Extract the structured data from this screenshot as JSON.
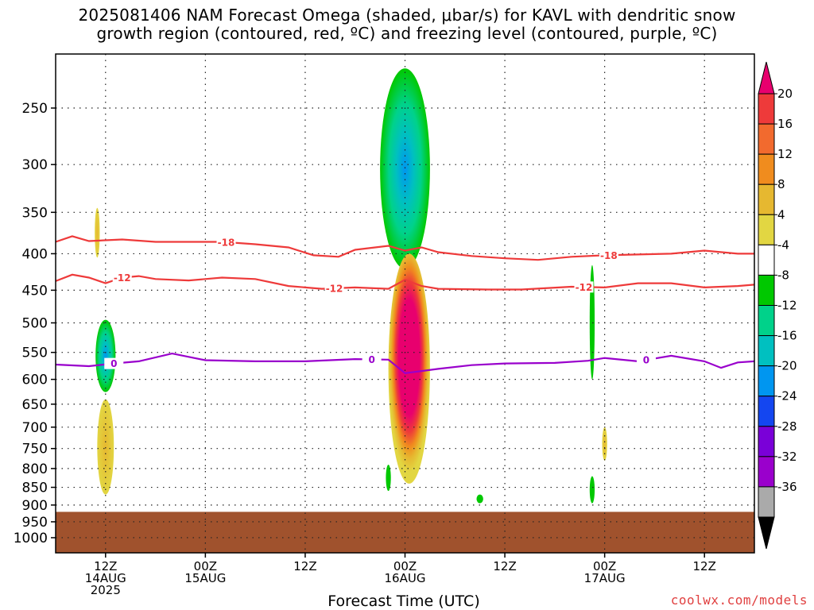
{
  "title_line1": "2025081406 NAM Forecast Omega (shaded, μbar/s) for KAVL with dendritic snow",
  "title_line2": "growth region (contoured, red, ºC) and freezing level (contoured, purple, ºC)",
  "xlabel": "Forecast Time (UTC)",
  "credit": "coolwx.com/models",
  "chart_data": {
    "type": "heatmap",
    "y_axis": {
      "label": "",
      "unit": "hPa",
      "scale": "log-pressure",
      "range": [
        210,
        1050
      ],
      "ticks": [
        250,
        300,
        350,
        400,
        450,
        500,
        550,
        600,
        650,
        700,
        750,
        800,
        850,
        900,
        950,
        1000
      ]
    },
    "x_axis": {
      "start": "2025-08-14T06Z",
      "end": "2025-08-17T18Z",
      "ticks": [
        {
          "t": 6,
          "line1": "12Z",
          "line2": "14AUG",
          "line3": "2025"
        },
        {
          "t": 18,
          "line1": "00Z",
          "line2": "15AUG",
          "line3": ""
        },
        {
          "t": 30,
          "line1": "12Z",
          "line2": "",
          "line3": ""
        },
        {
          "t": 42,
          "line1": "00Z",
          "line2": "16AUG",
          "line3": ""
        },
        {
          "t": 54,
          "line1": "12Z",
          "line2": "",
          "line3": ""
        },
        {
          "t": 66,
          "line1": "00Z",
          "line2": "17AUG",
          "line3": ""
        },
        {
          "t": 78,
          "line1": "12Z",
          "line2": "",
          "line3": ""
        }
      ],
      "grid": true
    },
    "colorbar": {
      "labels": [
        "20",
        "16",
        "12",
        "8",
        "4",
        "-4",
        "-8",
        "-12",
        "-16",
        "-20",
        "-24",
        "-28",
        "-32",
        "-36"
      ],
      "colors_top_to_bottom": [
        "#e8006e",
        "#ee3a3a",
        "#f26a2e",
        "#f08c1e",
        "#e6b830",
        "#e2d642",
        "#ffffff",
        "#00c800",
        "#00d28a",
        "#00c0c0",
        "#0096f0",
        "#1446f0",
        "#7a00d8",
        "#9a00cc",
        "#aaaaaa",
        "#000000"
      ]
    },
    "terrain": {
      "surface_pressure": 920,
      "color": "#a0522d"
    },
    "contours": [
      {
        "label": "-18",
        "color": "#ee3a3a",
        "label_t": [
          20.5,
          66.5
        ],
        "points": [
          [
            0,
            385
          ],
          [
            2,
            378
          ],
          [
            4,
            384
          ],
          [
            8,
            382
          ],
          [
            12,
            385
          ],
          [
            16,
            385
          ],
          [
            20,
            385
          ],
          [
            24,
            388
          ],
          [
            28,
            392
          ],
          [
            31,
            402
          ],
          [
            34,
            404
          ],
          [
            36,
            395
          ],
          [
            40,
            390
          ],
          [
            42,
            396
          ],
          [
            44,
            392
          ],
          [
            46,
            398
          ],
          [
            50,
            403
          ],
          [
            54,
            406
          ],
          [
            58,
            408
          ],
          [
            62,
            404
          ],
          [
            66,
            402
          ],
          [
            70,
            401
          ],
          [
            74,
            400
          ],
          [
            78,
            396
          ],
          [
            82,
            400
          ],
          [
            84,
            400
          ]
        ]
      },
      {
        "label": "-12",
        "color": "#ee3a3a",
        "label_t": [
          8,
          33.5,
          63.5
        ],
        "points": [
          [
            0,
            437
          ],
          [
            2,
            428
          ],
          [
            4,
            432
          ],
          [
            6,
            440
          ],
          [
            8,
            432
          ],
          [
            10,
            430
          ],
          [
            12,
            434
          ],
          [
            16,
            436
          ],
          [
            20,
            432
          ],
          [
            24,
            434
          ],
          [
            28,
            444
          ],
          [
            32,
            448
          ],
          [
            36,
            446
          ],
          [
            40,
            448
          ],
          [
            42,
            435
          ],
          [
            44,
            444
          ],
          [
            46,
            448
          ],
          [
            52,
            449
          ],
          [
            56,
            449
          ],
          [
            62,
            445
          ],
          [
            66,
            446
          ],
          [
            70,
            440
          ],
          [
            74,
            440
          ],
          [
            78,
            446
          ],
          [
            82,
            444
          ],
          [
            84,
            442
          ]
        ]
      },
      {
        "label": "0",
        "color": "#9900cc",
        "label_t": [
          7,
          38,
          71
        ],
        "points": [
          [
            0,
            572
          ],
          [
            4,
            575
          ],
          [
            7,
            570
          ],
          [
            10,
            566
          ],
          [
            14,
            552
          ],
          [
            18,
            564
          ],
          [
            24,
            566
          ],
          [
            30,
            566
          ],
          [
            36,
            562
          ],
          [
            40,
            563
          ],
          [
            42,
            588
          ],
          [
            46,
            580
          ],
          [
            50,
            573
          ],
          [
            54,
            570
          ],
          [
            60,
            569
          ],
          [
            64,
            565
          ],
          [
            66,
            560
          ],
          [
            70,
            566
          ],
          [
            74,
            556
          ],
          [
            78,
            566
          ],
          [
            80,
            578
          ],
          [
            82,
            568
          ],
          [
            84,
            566
          ]
        ]
      }
    ],
    "omega_features": [
      {
        "name": "day1-ascent-core",
        "t": 6,
        "p_top": 495,
        "p_bot": 625,
        "half_width_h": 1.2,
        "value": -14
      },
      {
        "name": "day1-upper-weak-rise",
        "t": 5,
        "p_top": 345,
        "p_bot": 405,
        "half_width_h": 0.3,
        "value": 4
      },
      {
        "name": "day1-lower-subsidence",
        "t": 6,
        "p_top": 640,
        "p_bot": 870,
        "half_width_h": 1.0,
        "value": 5
      },
      {
        "name": "day2-upper-ascent",
        "t": 42,
        "p_top": 220,
        "p_bot": 420,
        "half_width_h": 3.0,
        "value": -18
      },
      {
        "name": "day2-lower-subsidence",
        "t": 42.5,
        "p_top": 400,
        "p_bot": 840,
        "half_width_h": 2.5,
        "value": 20
      },
      {
        "name": "day2-near-surface-ascent",
        "t": 40,
        "p_top": 790,
        "p_bot": 860,
        "half_width_h": 0.3,
        "value": -6
      },
      {
        "name": "day2-afternoon-ascent",
        "t": 51,
        "p_top": 870,
        "p_bot": 895,
        "half_width_h": 0.4,
        "value": -6
      },
      {
        "name": "day3-narrow-ascent",
        "t": 64.5,
        "p_top": 415,
        "p_bot": 600,
        "half_width_h": 0.3,
        "value": -8
      },
      {
        "name": "day3-lower-ascent",
        "t": 64.5,
        "p_top": 820,
        "p_bot": 895,
        "half_width_h": 0.3,
        "value": -8
      },
      {
        "name": "day3-lower-subsidence",
        "t": 66,
        "p_top": 700,
        "p_bot": 780,
        "half_width_h": 0.3,
        "value": 5
      }
    ]
  }
}
